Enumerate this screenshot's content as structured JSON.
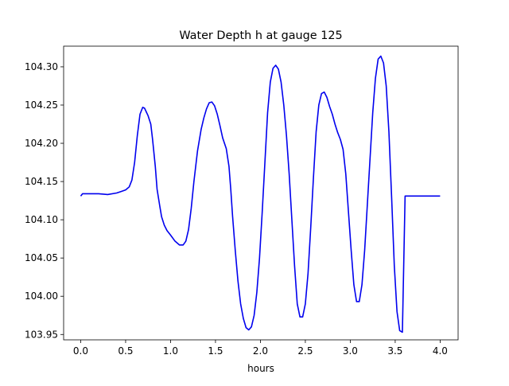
{
  "chart_data": {
    "type": "line",
    "title": "Water Depth h at gauge 125",
    "xlabel": "hours",
    "ylabel": "",
    "xlim": [
      -0.19,
      4.2
    ],
    "ylim": [
      103.943,
      104.327
    ],
    "x_ticks": [
      0.0,
      0.5,
      1.0,
      1.5,
      2.0,
      2.5,
      3.0,
      3.5,
      4.0
    ],
    "x_tick_labels": [
      "0.0",
      "0.5",
      "1.0",
      "1.5",
      "2.0",
      "2.5",
      "3.0",
      "3.5",
      "4.0"
    ],
    "y_ticks": [
      103.95,
      104.0,
      104.05,
      104.1,
      104.15,
      104.2,
      104.25,
      104.3
    ],
    "y_tick_labels": [
      "103.95",
      "104.00",
      "104.05",
      "104.10",
      "104.15",
      "104.20",
      "104.25",
      "104.30"
    ],
    "grid": false,
    "legend": "none",
    "series": [
      {
        "color": "#0000ee",
        "x": [
          0.0,
          0.02,
          0.1,
          0.2,
          0.3,
          0.4,
          0.45,
          0.5,
          0.54,
          0.57,
          0.6,
          0.63,
          0.66,
          0.69,
          0.71,
          0.73,
          0.75,
          0.78,
          0.8,
          0.83,
          0.85,
          0.88,
          0.9,
          0.93,
          0.96,
          1.0,
          1.05,
          1.1,
          1.14,
          1.17,
          1.2,
          1.23,
          1.26,
          1.3,
          1.34,
          1.37,
          1.4,
          1.43,
          1.46,
          1.49,
          1.52,
          1.55,
          1.58,
          1.62,
          1.65,
          1.67,
          1.69,
          1.72,
          1.75,
          1.78,
          1.81,
          1.84,
          1.87,
          1.9,
          1.93,
          1.96,
          1.99,
          2.02,
          2.05,
          2.08,
          2.11,
          2.14,
          2.17,
          2.2,
          2.23,
          2.26,
          2.29,
          2.32,
          2.35,
          2.38,
          2.41,
          2.44,
          2.47,
          2.5,
          2.53,
          2.56,
          2.59,
          2.62,
          2.65,
          2.68,
          2.71,
          2.74,
          2.77,
          2.8,
          2.83,
          2.86,
          2.89,
          2.92,
          2.95,
          2.98,
          3.01,
          3.04,
          3.07,
          3.1,
          3.13,
          3.16,
          3.19,
          3.22,
          3.25,
          3.28,
          3.31,
          3.34,
          3.37,
          3.4,
          3.43,
          3.46,
          3.49,
          3.52,
          3.55,
          3.58,
          3.61,
          3.64,
          3.67,
          3.7,
          3.73,
          3.75,
          3.78,
          3.81,
          3.84,
          3.87,
          3.9,
          3.93,
          3.96,
          4.0
        ],
        "y": [
          104.131,
          104.134,
          104.134,
          104.134,
          104.133,
          104.135,
          104.137,
          104.139,
          104.143,
          104.152,
          104.175,
          104.21,
          104.238,
          104.247,
          104.246,
          104.241,
          104.236,
          104.225,
          104.205,
          104.17,
          104.14,
          104.118,
          104.104,
          104.093,
          104.086,
          104.08,
          104.072,
          104.067,
          104.067,
          104.072,
          104.087,
          104.115,
          104.15,
          104.19,
          104.218,
          104.233,
          104.245,
          104.253,
          104.254,
          104.249,
          104.238,
          104.223,
          104.207,
          104.193,
          104.17,
          104.14,
          104.105,
          104.06,
          104.02,
          103.99,
          103.971,
          103.959,
          103.956,
          103.96,
          103.975,
          104.005,
          104.05,
          104.11,
          104.175,
          104.24,
          104.28,
          104.298,
          104.302,
          104.297,
          104.28,
          104.25,
          104.21,
          104.16,
          104.1,
          104.04,
          103.99,
          103.973,
          103.973,
          103.99,
          104.03,
          104.09,
          104.155,
          104.215,
          104.25,
          104.265,
          104.267,
          104.26,
          104.248,
          104.238,
          104.225,
          104.214,
          104.205,
          104.192,
          104.16,
          104.11,
          104.06,
          104.015,
          103.993,
          103.993,
          104.015,
          104.06,
          104.12,
          104.18,
          104.24,
          104.285,
          104.31,
          104.314,
          104.305,
          104.275,
          104.215,
          104.13,
          104.04,
          103.98,
          103.955,
          103.953,
          104.131,
          104.131,
          104.131,
          104.131,
          104.131,
          104.131,
          104.131,
          104.131,
          104.131,
          104.131,
          104.131,
          104.131,
          104.131,
          104.131
        ]
      }
    ]
  }
}
